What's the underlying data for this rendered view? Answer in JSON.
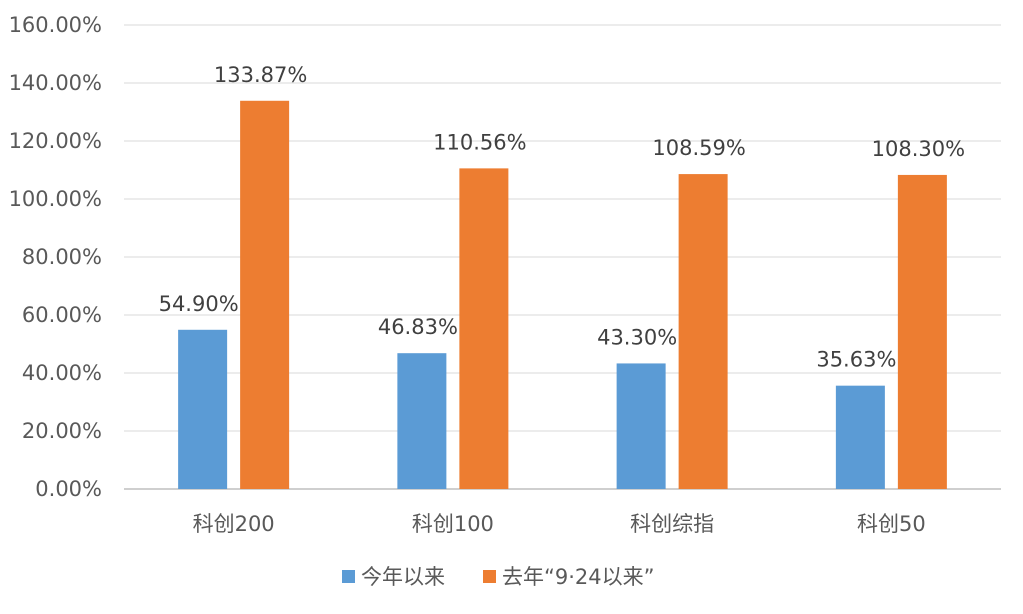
{
  "chart_data": {
    "type": "bar",
    "categories": [
      "科创200",
      "科创100",
      "科创综指",
      "科创50"
    ],
    "series": [
      {
        "name": "今年以来",
        "values": [
          54.9,
          46.83,
          43.3,
          35.63
        ],
        "labels": [
          "54.90%",
          "46.83%",
          "43.30%",
          "35.63%"
        ],
        "color": "#5B9BD5"
      },
      {
        "name": "去年“9·24以来”",
        "values": [
          133.87,
          110.56,
          108.59,
          108.3
        ],
        "labels": [
          "133.87%",
          "110.56%",
          "108.59%",
          "108.30%"
        ],
        "color": "#ED7D31"
      }
    ],
    "ylim": [
      0,
      160
    ],
    "yticks": [
      "0.00%",
      "20.00%",
      "40.00%",
      "60.00%",
      "80.00%",
      "100.00%",
      "120.00%",
      "140.00%",
      "160.00%"
    ],
    "title": "",
    "xlabel": "",
    "ylabel": "",
    "grid": true,
    "legend_position": "bottom",
    "gridline_color": "#D9D9D9",
    "axis_color": "#BFBFBF"
  }
}
